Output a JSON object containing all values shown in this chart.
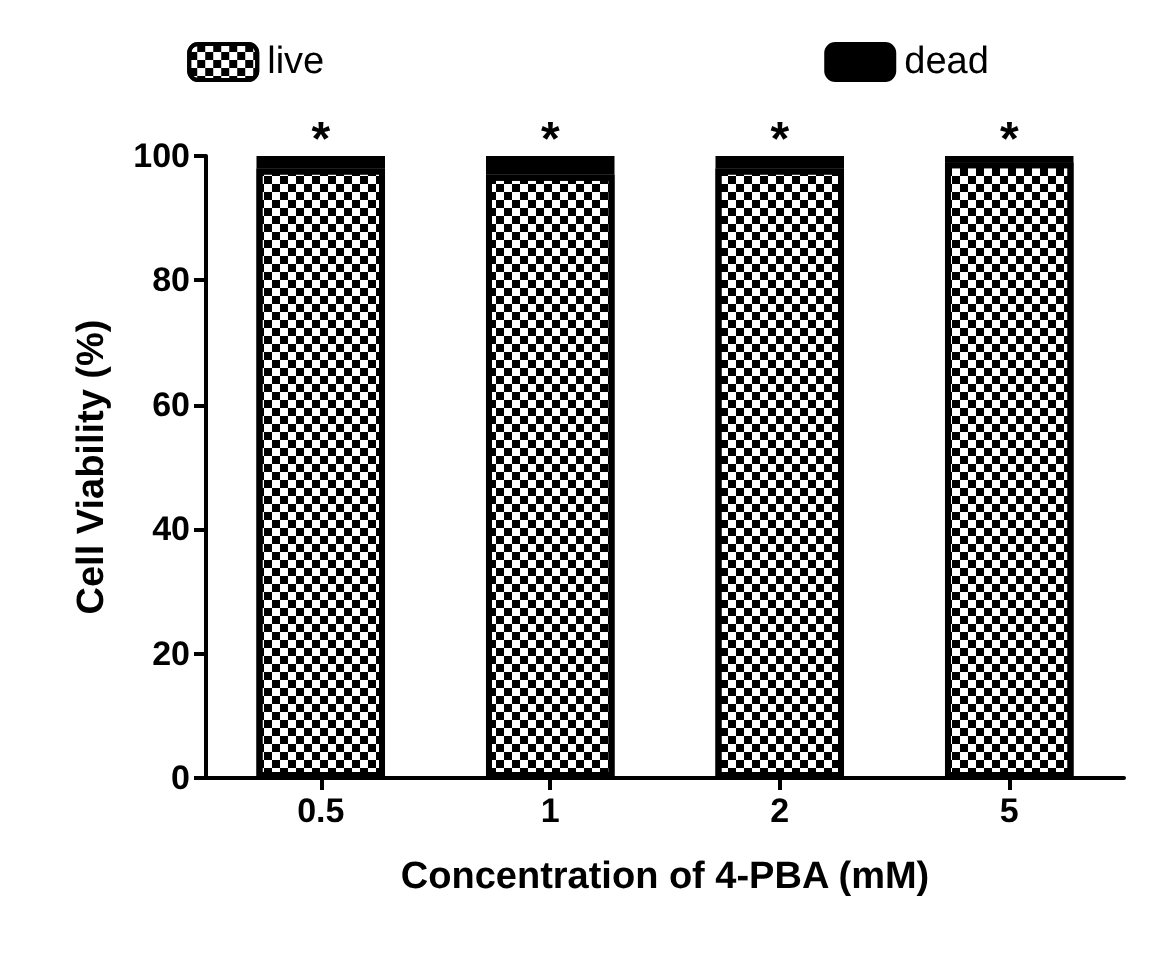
{
  "chart_data": {
    "type": "bar",
    "stacked": true,
    "xlabel": "Concentration of 4-PBA (mM)",
    "ylabel": "Cell Viability (%)",
    "categories": [
      "0.5",
      "1",
      "2",
      "5"
    ],
    "series": [
      {
        "name": "live",
        "color": "#ffffff",
        "values": [
          98,
          97,
          98,
          99
        ]
      },
      {
        "name": "dead",
        "color": "#000000",
        "values": [
          2,
          3,
          2,
          1
        ]
      }
    ],
    "ylim": [
      0,
      100
    ],
    "yticks": [
      0,
      20,
      40,
      60,
      80,
      100
    ],
    "grid": false,
    "legend": "top",
    "annotations": [
      {
        "text": "*",
        "x": "0.5",
        "y": 100
      },
      {
        "text": "*",
        "x": "1",
        "y": 100
      },
      {
        "text": "*",
        "x": "2",
        "y": 100
      },
      {
        "text": "*",
        "x": "5",
        "y": 100
      }
    ]
  }
}
